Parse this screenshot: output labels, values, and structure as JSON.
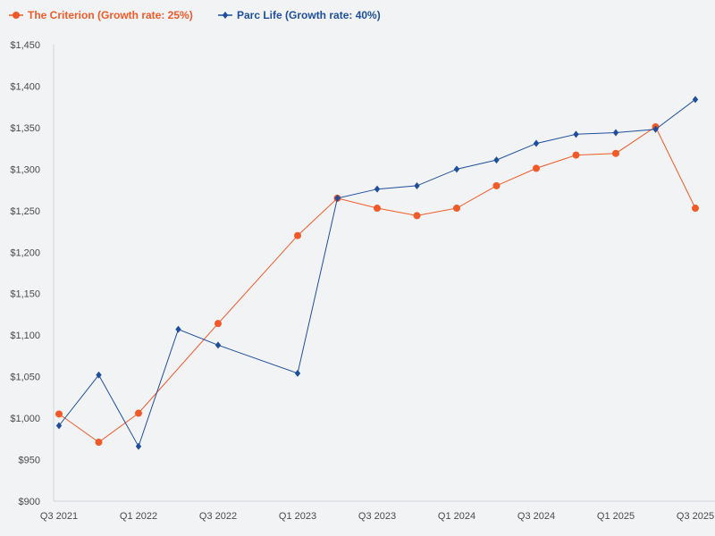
{
  "chart_data": {
    "type": "line",
    "title": "",
    "xlabel": "",
    "ylabel": "",
    "ylim": [
      900,
      1450
    ],
    "yticks": [
      900,
      950,
      1000,
      1050,
      1100,
      1150,
      1200,
      1250,
      1300,
      1350,
      1400,
      1450
    ],
    "ytick_labels": [
      "$900",
      "$950",
      "$1,000",
      "$1,050",
      "$1,100",
      "$1,150",
      "$1,200",
      "$1,250",
      "$1,300",
      "$1,350",
      "$1,400",
      "$1,450"
    ],
    "x_positions": [
      "Q3 2021",
      "Q4 2021",
      "Q1 2022",
      "Q2 2022",
      "Q3 2022",
      "Q4 2022",
      "Q1 2023",
      "Q2 2023",
      "Q3 2023",
      "Q4 2023",
      "Q1 2024",
      "Q2 2024",
      "Q3 2024",
      "Q4 2024",
      "Q1 2025",
      "Q2 2025",
      "Q3 2025"
    ],
    "xtick_labels": [
      "Q3 2021",
      "Q1 2022",
      "Q3 2022",
      "Q1 2023",
      "Q3 2023",
      "Q1 2024",
      "Q3 2024",
      "Q1 2025",
      "Q3 2025"
    ],
    "grid": false,
    "legend_position": "top-left",
    "series": [
      {
        "name": "The Criterion (Growth rate: 25%)",
        "color": "#f05a28",
        "marker": "circle",
        "points": [
          {
            "x": 0,
            "y": 1005
          },
          {
            "x": 1,
            "y": 971
          },
          {
            "x": 2,
            "y": 1006
          },
          {
            "x": 4,
            "y": 1114
          },
          {
            "x": 6,
            "y": 1220
          },
          {
            "x": 7,
            "y": 1265
          },
          {
            "x": 8,
            "y": 1253
          },
          {
            "x": 9,
            "y": 1244
          },
          {
            "x": 10,
            "y": 1253
          },
          {
            "x": 11,
            "y": 1280
          },
          {
            "x": 12,
            "y": 1301
          },
          {
            "x": 13,
            "y": 1317
          },
          {
            "x": 14,
            "y": 1319
          },
          {
            "x": 15,
            "y": 1351
          },
          {
            "x": 16,
            "y": 1253
          }
        ]
      },
      {
        "name": "Parc Life (Growth rate: 40%)",
        "color": "#1f4e9c",
        "marker": "diamond",
        "points": [
          {
            "x": 0,
            "y": 991
          },
          {
            "x": 1,
            "y": 1052
          },
          {
            "x": 2,
            "y": 966
          },
          {
            "x": 3,
            "y": 1107
          },
          {
            "x": 4,
            "y": 1088
          },
          {
            "x": 6,
            "y": 1054
          },
          {
            "x": 7,
            "y": 1265
          },
          {
            "x": 8,
            "y": 1276
          },
          {
            "x": 9,
            "y": 1280
          },
          {
            "x": 10,
            "y": 1300
          },
          {
            "x": 11,
            "y": 1311
          },
          {
            "x": 12,
            "y": 1331
          },
          {
            "x": 13,
            "y": 1342
          },
          {
            "x": 14,
            "y": 1344
          },
          {
            "x": 15,
            "y": 1348
          },
          {
            "x": 16,
            "y": 1384
          }
        ]
      }
    ]
  }
}
